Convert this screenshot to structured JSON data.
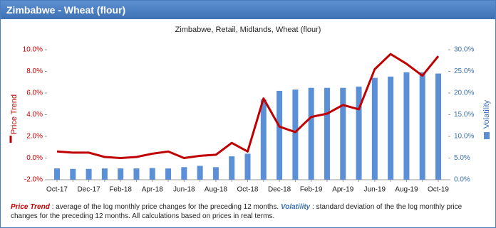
{
  "header": {
    "title": "Zimbabwe - Wheat (flour)"
  },
  "chart_data": {
    "type": "bar-line",
    "title": "Zimbabwe, Retail, Midlands, Wheat (flour)",
    "categories": [
      "Oct-17",
      null,
      "Dec-17",
      null,
      "Feb-18",
      null,
      "Apr-18",
      null,
      "Jun-18",
      null,
      "Aug-18",
      null,
      "Oct-18",
      null,
      "Dec-18",
      null,
      "Feb-19",
      null,
      "Apr-19",
      null,
      "Jun-19",
      null,
      "Aug-19",
      null,
      "Oct-19"
    ],
    "y_label": "Price Trend",
    "y2_label": "Volatility",
    "ylim": [
      -2,
      10
    ],
    "yticks": [
      {
        "value": -2,
        "label": "-2.0%"
      },
      {
        "value": 0,
        "label": "0.0%"
      },
      {
        "value": 2,
        "label": "2.0%"
      },
      {
        "value": 4,
        "label": "4.0%"
      },
      {
        "value": 6,
        "label": "6.0%"
      },
      {
        "value": 8,
        "label": "8.0%"
      },
      {
        "value": 10,
        "label": "10.0%"
      }
    ],
    "y2lim": [
      0,
      30
    ],
    "y2ticks": [
      {
        "value": 0,
        "label": "0.0%"
      },
      {
        "value": 5,
        "label": "5.0%"
      },
      {
        "value": 10,
        "label": "10.0%"
      },
      {
        "value": 15,
        "label": "15.0%"
      },
      {
        "value": 20,
        "label": "20.0%"
      },
      {
        "value": 25,
        "label": "25.0%"
      },
      {
        "value": 30,
        "label": "30.0%"
      }
    ],
    "series": [
      {
        "name": "Volatility",
        "type": "bar",
        "axis": "y2",
        "color": "#5b8fd6",
        "values": [
          2.6,
          2.5,
          2.5,
          2.6,
          2.6,
          2.6,
          2.7,
          2.6,
          2.9,
          3.2,
          2.9,
          5.4,
          6.0,
          18.5,
          20.5,
          20.8,
          21.2,
          21.2,
          21.2,
          21.5,
          23.5,
          23.8,
          24.8,
          24.8,
          24.5
        ]
      },
      {
        "name": "Price Trend",
        "type": "line",
        "color": "#c00000",
        "values": [
          0.6,
          0.5,
          0.5,
          0.1,
          0.0,
          0.1,
          0.4,
          0.6,
          0.0,
          0.2,
          0.3,
          1.4,
          0.6,
          5.5,
          2.9,
          2.4,
          3.8,
          4.1,
          4.9,
          4.5,
          8.2,
          9.6,
          8.7,
          7.6,
          9.4
        ]
      }
    ],
    "footnote": [
      "Price Trend",
      " : average of the log monthly price changes for the preceding 12 months. ",
      "Volatility",
      " : standard deviation of the the log monthly price changes for the preceding 12 months. All calculations based on prices in real terms."
    ]
  }
}
